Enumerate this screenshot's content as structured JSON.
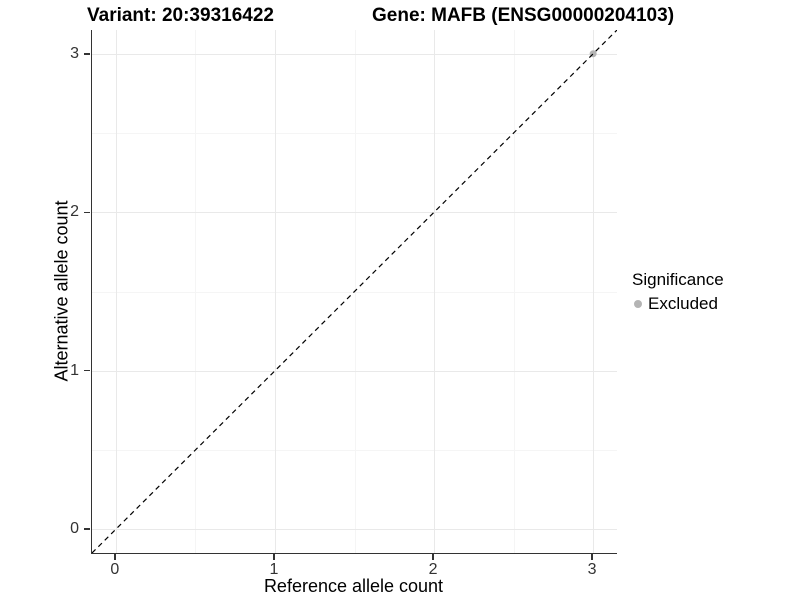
{
  "titles": {
    "variant": "Variant: 20:39316422",
    "gene": "Gene: MAFB (ENSG00000204103)"
  },
  "axes": {
    "x": {
      "label": "Reference allele count"
    },
    "y": {
      "label": "Alternative allele count"
    }
  },
  "legend": {
    "title": "Significance",
    "items": [
      {
        "label": "Excluded",
        "color": "#b4b4b4"
      }
    ]
  },
  "colors": {
    "axis_line": "#333333",
    "tick_text": "#333333",
    "grid_major": "#e9e9e9",
    "grid_minor": "#f5f5f5",
    "identity_line": "#000000",
    "point_excluded": "#b4b4b4",
    "background": "#ffffff"
  },
  "chart_data": {
    "type": "scatter",
    "title": "Variant: 20:39316422 — Gene: MAFB (ENSG00000204103)",
    "xlabel": "Reference allele count",
    "ylabel": "Alternative allele count",
    "xlim": [
      -0.15,
      3.15
    ],
    "ylim": [
      -0.15,
      3.15
    ],
    "x_ticks": [
      0,
      1,
      2,
      3
    ],
    "y_ticks": [
      0,
      1,
      2,
      3
    ],
    "x_minor": [
      0.5,
      1.5,
      2.5
    ],
    "y_minor": [
      0.5,
      1.5,
      2.5
    ],
    "grid": "on",
    "legend_position": "right",
    "legend_title": "Significance",
    "series": [
      {
        "name": "Excluded",
        "color": "#b4b4b4",
        "points": [
          [
            3,
            3
          ]
        ]
      }
    ],
    "reference_line": {
      "kind": "identity",
      "equation": "y = x",
      "style": "dashed",
      "color": "#000000"
    }
  }
}
